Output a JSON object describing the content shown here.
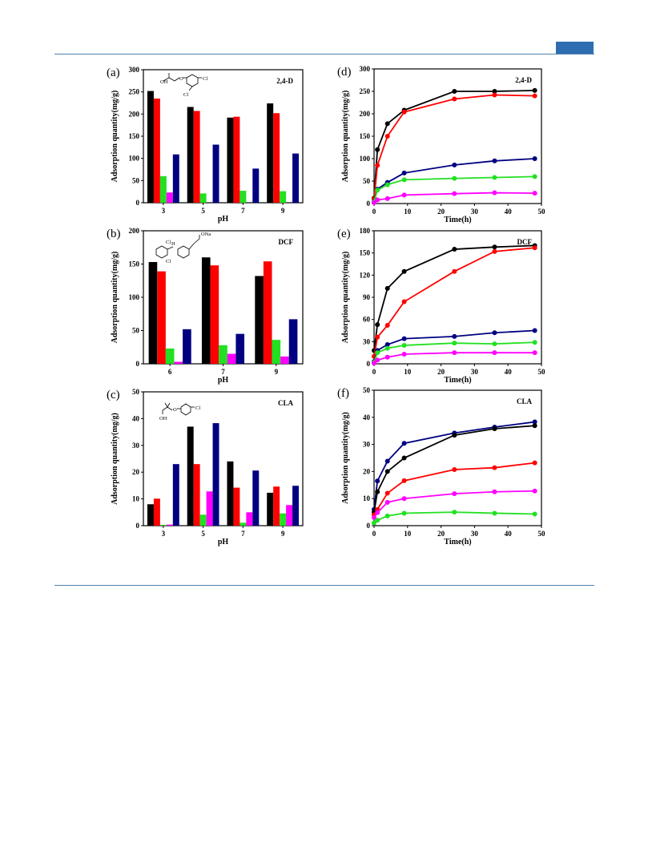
{
  "colors": {
    "black": "#000000",
    "red": "#ff0000",
    "green": "#22e022",
    "magenta": "#ff00ff",
    "navy": "#000080",
    "accent": "#2f6db2"
  },
  "structures": {
    "a": {
      "oh": "OH",
      "o": "O",
      "cl1": "Cl",
      "cl2": "Cl"
    },
    "b": {
      "ona": "ONa",
      "cl1": "Cl",
      "cl2": "Cl",
      "nh": "H"
    },
    "c": {
      "oh": "OH",
      "o": "O",
      "cl": "Cl"
    }
  },
  "chart_data": [
    {
      "panel": "(a)",
      "type": "bar",
      "compound": "2,4-D",
      "xlabel": "pH",
      "ylabel": "Adsorption quantity(mg/g)",
      "categories": [
        "3",
        "5",
        "7",
        "9"
      ],
      "ylim": [
        0,
        300
      ],
      "yticks": [
        0,
        50,
        100,
        150,
        200,
        250,
        300
      ],
      "series": [
        {
          "color": "black",
          "values": [
            252,
            216,
            192,
            224
          ]
        },
        {
          "color": "red",
          "values": [
            235,
            207,
            194,
            202
          ]
        },
        {
          "color": "green",
          "values": [
            60,
            21,
            27,
            26
          ]
        },
        {
          "color": "magenta",
          "values": [
            23,
            0,
            0,
            0
          ]
        },
        {
          "color": "navy",
          "values": [
            109,
            131,
            77,
            111
          ]
        }
      ]
    },
    {
      "panel": "(b)",
      "type": "bar",
      "compound": "DCF",
      "xlabel": "pH",
      "ylabel": "Adsorption quantity(mg/g)",
      "categories": [
        "6",
        "7",
        "9"
      ],
      "ylim": [
        0,
        200
      ],
      "yticks": [
        0,
        50,
        100,
        150,
        200
      ],
      "series": [
        {
          "color": "black",
          "values": [
            153,
            160,
            132
          ]
        },
        {
          "color": "red",
          "values": [
            139,
            148,
            154
          ]
        },
        {
          "color": "green",
          "values": [
            23,
            28,
            36
          ]
        },
        {
          "color": "magenta",
          "values": [
            3,
            15,
            11
          ]
        },
        {
          "color": "navy",
          "values": [
            52,
            45,
            67
          ]
        }
      ]
    },
    {
      "panel": "(c)",
      "type": "bar",
      "compound": "CLA",
      "xlabel": "pH",
      "ylabel": "Adsorption quantity(mg/g)",
      "categories": [
        "3",
        "5",
        "7",
        "9"
      ],
      "ylim": [
        0,
        50
      ],
      "yticks": [
        0,
        10,
        20,
        30,
        40,
        50
      ],
      "series": [
        {
          "color": "black",
          "values": [
            8,
            37,
            24,
            12.3
          ]
        },
        {
          "color": "red",
          "values": [
            10.1,
            23,
            14.2,
            14.6
          ]
        },
        {
          "color": "green",
          "values": [
            0.3,
            4.1,
            1.1,
            4.6
          ]
        },
        {
          "color": "magenta",
          "values": [
            0.4,
            12.8,
            5,
            7.7
          ]
        },
        {
          "color": "navy",
          "values": [
            23,
            38.3,
            20.6,
            14.9
          ]
        }
      ]
    },
    {
      "panel": "(d)",
      "type": "line",
      "compound": "2,4-D",
      "xlabel": "Time(h)",
      "ylabel": "Adsorption quantity(mg/g)",
      "x": [
        0,
        1,
        4,
        9,
        24,
        36,
        48
      ],
      "xlim": [
        0,
        50
      ],
      "xticks": [
        0,
        10,
        20,
        30,
        40,
        50
      ],
      "ylim": [
        0,
        300
      ],
      "yticks": [
        0,
        50,
        100,
        150,
        200,
        250,
        300
      ],
      "series": [
        {
          "color": "black",
          "values": [
            12,
            120,
            178,
            208,
            250,
            250,
            252
          ]
        },
        {
          "color": "red",
          "values": [
            10,
            85,
            150,
            204,
            233,
            242,
            240
          ]
        },
        {
          "color": "navy",
          "values": [
            5,
            32,
            47,
            68,
            86,
            95,
            100
          ]
        },
        {
          "color": "green",
          "values": [
            4,
            30,
            42,
            53,
            56,
            58,
            60
          ]
        },
        {
          "color": "magenta",
          "values": [
            2,
            8,
            11,
            19,
            22,
            24,
            23
          ]
        }
      ]
    },
    {
      "panel": "(e)",
      "type": "line",
      "compound": "DCF",
      "xlabel": "Time(h)",
      "ylabel": "Adsorption quantity(mg/g)",
      "x": [
        0,
        1,
        4,
        9,
        24,
        36,
        48
      ],
      "xlim": [
        0,
        50
      ],
      "xticks": [
        0,
        10,
        20,
        30,
        40,
        50
      ],
      "ylim": [
        0,
        180
      ],
      "yticks": [
        0,
        30,
        60,
        90,
        120,
        150,
        180
      ],
      "series": [
        {
          "color": "black",
          "values": [
            18,
            53,
            102,
            125,
            155,
            158,
            160
          ]
        },
        {
          "color": "red",
          "values": [
            10,
            36,
            52,
            84,
            125,
            152,
            157
          ]
        },
        {
          "color": "navy",
          "values": [
            3,
            18,
            26,
            34,
            37,
            42,
            45
          ]
        },
        {
          "color": "green",
          "values": [
            2,
            15,
            21,
            25,
            28,
            27,
            29
          ]
        },
        {
          "color": "magenta",
          "values": [
            1,
            5,
            9,
            13,
            15,
            15,
            15
          ]
        }
      ]
    },
    {
      "panel": "(f)",
      "type": "line",
      "compound": "CLA",
      "xlabel": "Time(h)",
      "ylabel": "Adsorption quantity(mg/g)",
      "x": [
        0,
        1,
        4,
        9,
        24,
        36,
        48
      ],
      "xlim": [
        0,
        50
      ],
      "xticks": [
        0,
        10,
        20,
        30,
        40,
        50
      ],
      "ylim": [
        0,
        50
      ],
      "yticks": [
        0,
        10,
        20,
        30,
        40,
        50
      ],
      "series": [
        {
          "color": "navy",
          "values": [
            6,
            16.5,
            23.8,
            30.4,
            34.2,
            36.4,
            38.3
          ]
        },
        {
          "color": "black",
          "values": [
            5,
            12.5,
            20,
            25,
            33.4,
            35.8,
            36.9
          ]
        },
        {
          "color": "red",
          "values": [
            4,
            6,
            12,
            16.6,
            20.7,
            21.4,
            23.2
          ]
        },
        {
          "color": "magenta",
          "values": [
            3,
            4.8,
            8.6,
            10,
            11.8,
            12.5,
            12.8
          ]
        },
        {
          "color": "green",
          "values": [
            1,
            2,
            3.6,
            4.6,
            5,
            4.6,
            4.3
          ]
        }
      ]
    }
  ]
}
